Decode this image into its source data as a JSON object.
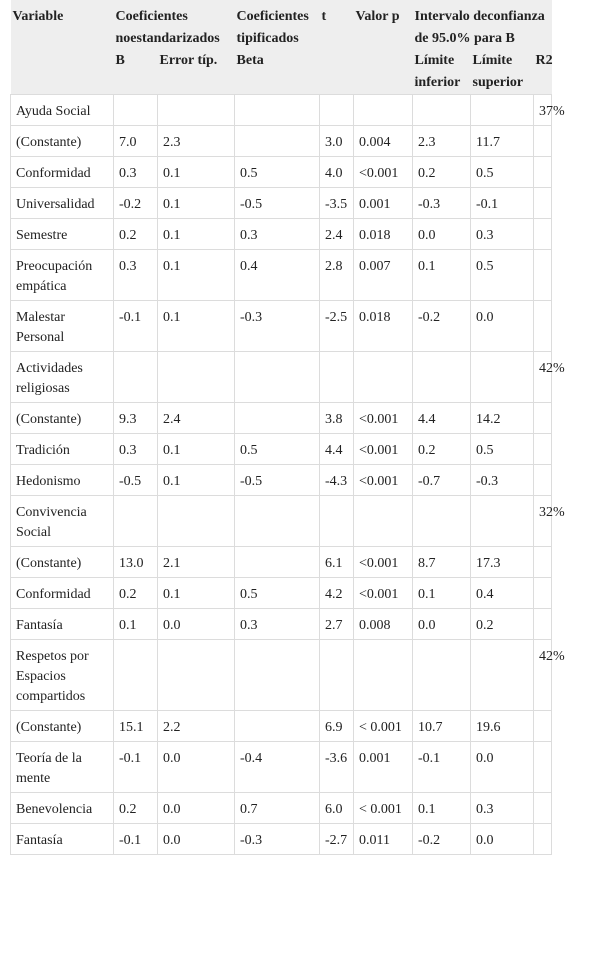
{
  "header": {
    "variable": "Variable",
    "coef_no_std": "Coeficientes noestandarizados",
    "coef_tip": "Coeficientes tipificados",
    "t": "t",
    "valor_p": "Valor p",
    "intervalo": "Intervalo deconfianza de 95.0% para B",
    "b": "B",
    "error_tip": "Error típ.",
    "beta": "Beta",
    "limite_inferior": "Límite inferior",
    "limite_superior": "Límite superior",
    "r2": "R2"
  },
  "rows": [
    {
      "variable": "Ayuda Social",
      "b": "",
      "error": "",
      "beta": "",
      "t": "",
      "p": "",
      "li": "",
      "ls": "",
      "r2": "37%"
    },
    {
      "variable": "(Constante)",
      "b": "7.0",
      "error": "2.3",
      "beta": "",
      "t": "3.0",
      "p": "0.004",
      "li": "2.3",
      "ls": "11.7",
      "r2": ""
    },
    {
      "variable": "Conformidad",
      "b": "0.3",
      "error": "0.1",
      "beta": "0.5",
      "t": "4.0",
      "p": "<0.001",
      "li": "0.2",
      "ls": "0.5",
      "r2": ""
    },
    {
      "variable": "Universalidad",
      "b": "-0.2",
      "error": "0.1",
      "beta": "-0.5",
      "t": "-3.5",
      "p": "0.001",
      "li": "-0.3",
      "ls": "-0.1",
      "r2": ""
    },
    {
      "variable": "Semestre",
      "b": "0.2",
      "error": "0.1",
      "beta": "0.3",
      "t": "2.4",
      "p": "0.018",
      "li": "0.0",
      "ls": "0.3",
      "r2": ""
    },
    {
      "variable": "Preocupación empática",
      "b": "0.3",
      "error": "0.1",
      "beta": "0.4",
      "t": "2.8",
      "p": "0.007",
      "li": "0.1",
      "ls": "0.5",
      "r2": ""
    },
    {
      "variable": "Malestar Personal",
      "b": "-0.1",
      "error": "0.1",
      "beta": "-0.3",
      "t": "-2.5",
      "p": "0.018",
      "li": "-0.2",
      "ls": "0.0",
      "r2": ""
    },
    {
      "variable": "Actividades religiosas",
      "b": "",
      "error": "",
      "beta": "",
      "t": "",
      "p": "",
      "li": "",
      "ls": "",
      "r2": "42%"
    },
    {
      "variable": "(Constante)",
      "b": "9.3",
      "error": "2.4",
      "beta": "",
      "t": "3.8",
      "p": "<0.001",
      "li": "4.4",
      "ls": "14.2",
      "r2": ""
    },
    {
      "variable": "Tradición",
      "b": "0.3",
      "error": "0.1",
      "beta": "0.5",
      "t": "4.4",
      "p": "<0.001",
      "li": "0.2",
      "ls": "0.5",
      "r2": ""
    },
    {
      "variable": "Hedonismo",
      "b": "-0.5",
      "error": "0.1",
      "beta": "-0.5",
      "t": "-4.3",
      "p": "<0.001",
      "li": "-0.7",
      "ls": "-0.3",
      "r2": ""
    },
    {
      "variable": "Convivencia Social",
      "b": "",
      "error": "",
      "beta": "",
      "t": "",
      "p": "",
      "li": "",
      "ls": "",
      "r2": "32%"
    },
    {
      "variable": "(Constante)",
      "b": "13.0",
      "error": "2.1",
      "beta": "",
      "t": "6.1",
      "p": "<0.001",
      "li": "8.7",
      "ls": "17.3",
      "r2": ""
    },
    {
      "variable": "Conformidad",
      "b": "0.2",
      "error": "0.1",
      "beta": "0.5",
      "t": "4.2",
      "p": "<0.001",
      "li": "0.1",
      "ls": "0.4",
      "r2": ""
    },
    {
      "variable": "Fantasía",
      "b": "0.1",
      "error": "0.0",
      "beta": "0.3",
      "t": "2.7",
      "p": "0.008",
      "li": "0.0",
      "ls": "0.2",
      "r2": ""
    },
    {
      "variable": "Respetos por Espacios compartidos",
      "b": "",
      "error": "",
      "beta": "",
      "t": "",
      "p": "",
      "li": "",
      "ls": "",
      "r2": "42%"
    },
    {
      "variable": "(Constante)",
      "b": "15.1",
      "error": "2.2",
      "beta": "",
      "t": "6.9",
      "p": "< 0.001",
      "li": "10.7",
      "ls": "19.6",
      "r2": ""
    },
    {
      "variable": "Teoría de la mente",
      "b": "-0.1",
      "error": "0.0",
      "beta": "-0.4",
      "t": "-3.6",
      "p": "0.001",
      "li": "-0.1",
      "ls": "0.0",
      "r2": ""
    },
    {
      "variable": "Benevolencia",
      "b": "0.2",
      "error": "0.0",
      "beta": "0.7",
      "t": "6.0",
      "p": "< 0.001",
      "li": "0.1",
      "ls": "0.3",
      "r2": ""
    },
    {
      "variable": "Fantasía",
      "b": "-0.1",
      "error": "0.0",
      "beta": "-0.3",
      "t": "-2.7",
      "p": "0.011",
      "li": "-0.2",
      "ls": "0.0",
      "r2": ""
    }
  ]
}
